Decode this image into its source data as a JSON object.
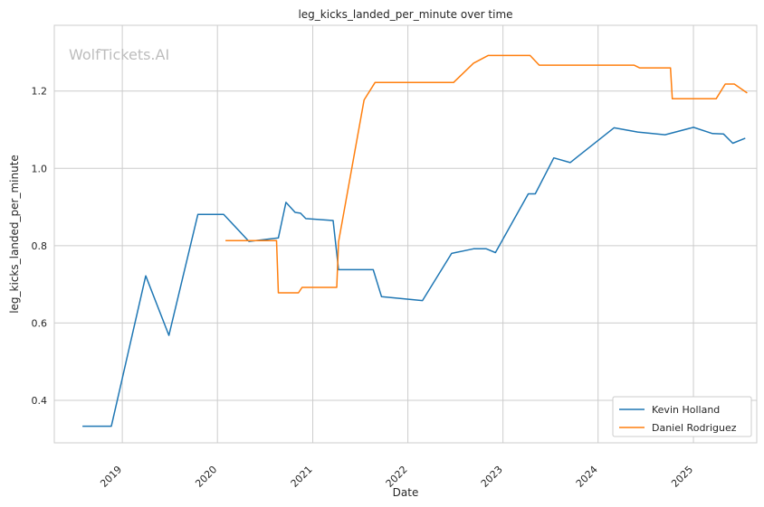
{
  "chart_data": {
    "type": "line",
    "title": "leg_kicks_landed_per_minute over time",
    "xlabel": "Date",
    "ylabel": "leg_kicks_landed_per_minute",
    "watermark": "WolfTickets.AI",
    "xlim": [
      "2018-04-15",
      "2025-09-01"
    ],
    "ylim": [
      0.29,
      1.37
    ],
    "x_ticks": [
      "2019",
      "2020",
      "2021",
      "2022",
      "2023",
      "2024",
      "2025"
    ],
    "y_ticks": [
      "0.4",
      "0.6",
      "0.8",
      "1.0",
      "1.2"
    ],
    "grid": true,
    "legend_position": "lower-right",
    "series": [
      {
        "name": "Kevin Holland",
        "color": "#1f77b4",
        "x": [
          "2018-08-01",
          "2018-11-20",
          "2019-04-01",
          "2019-06-29",
          "2019-10-18",
          "2020-01-25",
          "2020-05-01",
          "2020-08-22",
          "2020-09-20",
          "2020-10-25",
          "2020-11-15",
          "2020-12-05",
          "2021-03-20",
          "2021-04-10",
          "2021-08-21",
          "2021-09-22",
          "2022-02-26",
          "2022-06-18",
          "2022-09-10",
          "2022-10-29",
          "2022-12-03",
          "2023-04-08",
          "2023-05-05",
          "2023-07-15",
          "2023-09-16",
          "2024-03-02",
          "2024-06-01",
          "2024-09-14",
          "2025-01-01",
          "2025-03-15",
          "2025-04-26",
          "2025-06-01",
          "2025-07-19"
        ],
        "y": [
          0.333,
          0.333,
          0.722,
          0.568,
          0.881,
          0.881,
          0.811,
          0.82,
          0.912,
          0.886,
          0.884,
          0.87,
          0.865,
          0.738,
          0.738,
          0.668,
          0.658,
          0.78,
          0.792,
          0.792,
          0.782,
          0.934,
          0.934,
          1.027,
          1.015,
          1.105,
          1.094,
          1.087,
          1.106,
          1.09,
          1.089,
          1.065,
          1.078
        ]
      },
      {
        "name": "Daniel Rodriguez",
        "color": "#ff7f0e",
        "x": [
          "2020-02-01",
          "2020-08-15",
          "2020-08-22",
          "2020-11-07",
          "2020-11-21",
          "2021-04-03",
          "2021-04-10",
          "2021-07-17",
          "2021-08-28",
          "2022-06-25",
          "2022-09-10",
          "2022-11-05",
          "2023-04-15",
          "2023-05-20",
          "2024-05-18",
          "2024-06-08",
          "2024-10-05",
          "2024-10-12",
          "2025-03-29",
          "2025-05-03",
          "2025-06-07",
          "2025-07-26"
        ],
        "y": [
          0.813,
          0.813,
          0.678,
          0.678,
          0.692,
          0.692,
          0.81,
          1.177,
          1.222,
          1.222,
          1.272,
          1.292,
          1.292,
          1.267,
          1.267,
          1.26,
          1.26,
          1.18,
          1.18,
          1.218,
          1.218,
          1.195
        ]
      }
    ]
  }
}
